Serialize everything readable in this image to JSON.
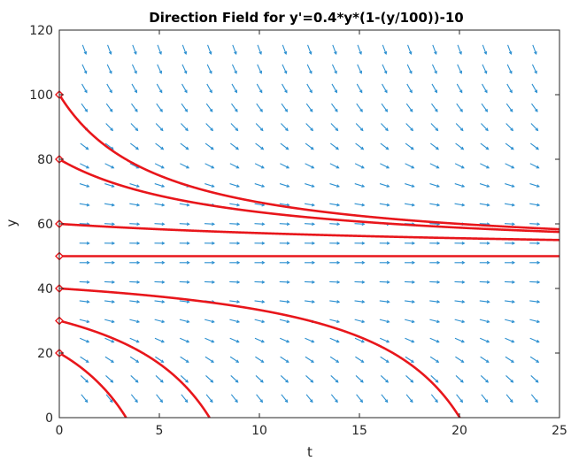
{
  "chart_data": {
    "type": "line",
    "title": "Direction Field for y'=0.4*y*(1-(y/100))-10",
    "xlabel": "t",
    "ylabel": "y",
    "xlim": [
      0,
      25
    ],
    "ylim": [
      0,
      120
    ],
    "xticks": [
      0,
      5,
      10,
      15,
      20,
      25
    ],
    "yticks": [
      0,
      20,
      40,
      60,
      80,
      100,
      120
    ],
    "ode": {
      "r": 0.4,
      "K": 100,
      "h": 10
    },
    "direction_field": {
      "t_step": 1.25,
      "y_step": 6
    },
    "initial_conditions": [
      20,
      30,
      40,
      50,
      60,
      80,
      100
    ],
    "colors": {
      "field": "#2b8fd0",
      "solution": "#e8161b",
      "axes": "#262626"
    },
    "grid": false
  }
}
